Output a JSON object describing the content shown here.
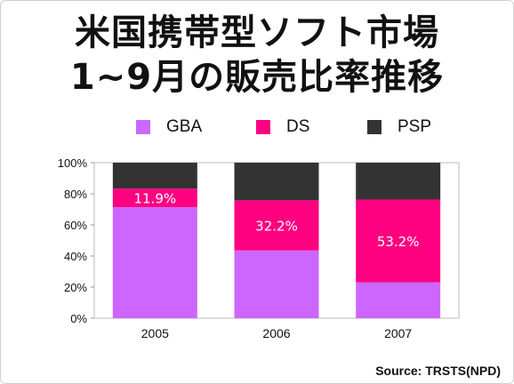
{
  "title_line1": "米国携帯型ソフト市場",
  "title_line2": "1~9月の販売比率推移",
  "source": "Source: TRSTS(NPD)",
  "colors": {
    "GBA": "#cc66ff",
    "DS": "#ff0080",
    "PSP": "#333333"
  },
  "chart_data": {
    "type": "bar",
    "stacked": true,
    "categories": [
      "2005",
      "2006",
      "2007"
    ],
    "series": [
      {
        "name": "GBA",
        "values": [
          71.4,
          43.6,
          23.1
        ]
      },
      {
        "name": "DS",
        "values": [
          11.9,
          32.2,
          53.2
        ]
      },
      {
        "name": "PSP",
        "values": [
          16.7,
          24.2,
          23.7
        ]
      }
    ],
    "data_labels": [
      "11.9%",
      "32.2%",
      "53.2%"
    ],
    "yticks": [
      "0%",
      "20%",
      "40%",
      "60%",
      "80%",
      "100%"
    ],
    "ylim": [
      0,
      100
    ],
    "legend": "top",
    "grid": false
  }
}
